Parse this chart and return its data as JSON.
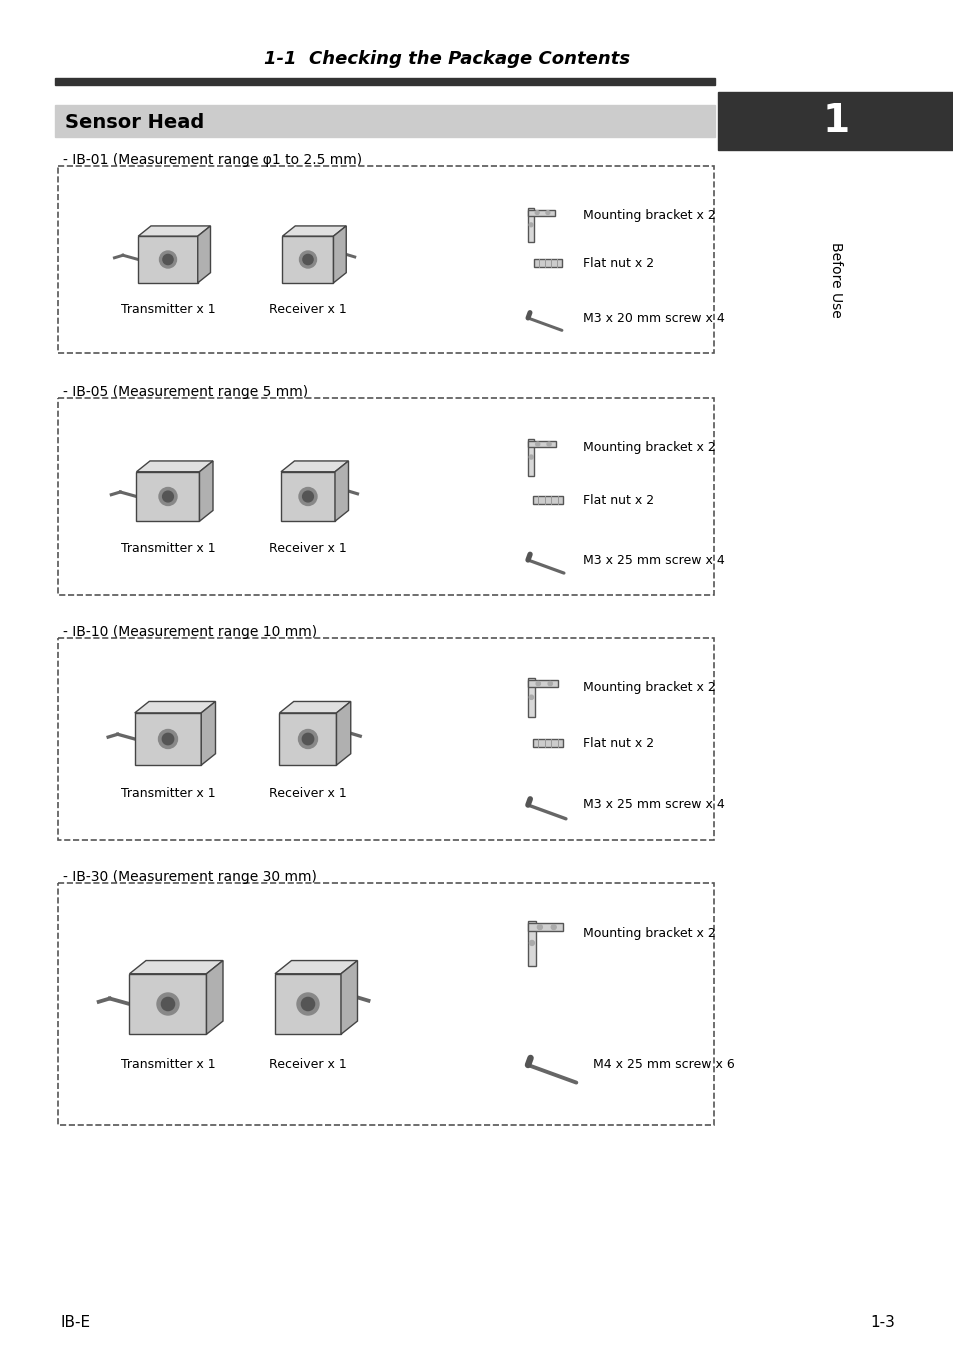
{
  "page_title": "1-1  Checking the Package Contents",
  "section_title": "Sensor Head",
  "sidebar_number": "1",
  "sidebar_text": "Before Use",
  "footer_left": "IB-E",
  "footer_right": "1-3",
  "bg_color": "#ffffff",
  "header_bar_color": "#333333",
  "section_header_bg": "#cccccc",
  "section_header_text_color": "#000000",
  "sidebar_bg": "#333333",
  "sidebar_text_color": "#ffffff",
  "sections": [
    {
      "label": "- IB-01 (Measurement range φ1 to 2.5 mm)",
      "parts": [
        "Mounting bracket x 2",
        "Flat nut x 2",
        "M3 x 20 mm screw x 4"
      ],
      "left_items": [
        "Transmitter x 1",
        "Receiver x 1"
      ]
    },
    {
      "label": "- IB-05 (Measurement range 5 mm)",
      "parts": [
        "Mounting bracket x 2",
        "Flat nut x 2",
        "M3 x 25 mm screw x 4"
      ],
      "left_items": [
        "Transmitter x 1",
        "Receiver x 1"
      ]
    },
    {
      "label": "- IB-10 (Measurement range 10 mm)",
      "parts": [
        "Mounting bracket x 2",
        "Flat nut x 2",
        "M3 x 25 mm screw x 4"
      ],
      "left_items": [
        "Transmitter x 1",
        "Receiver x 1"
      ]
    },
    {
      "label": "- IB-30 (Measurement range 30 mm)",
      "parts": [
        "Mounting bracket x 2",
        "M4 x 25 mm screw x 6"
      ],
      "left_items": [
        "Transmitter x 1",
        "Receiver x 1"
      ]
    }
  ]
}
